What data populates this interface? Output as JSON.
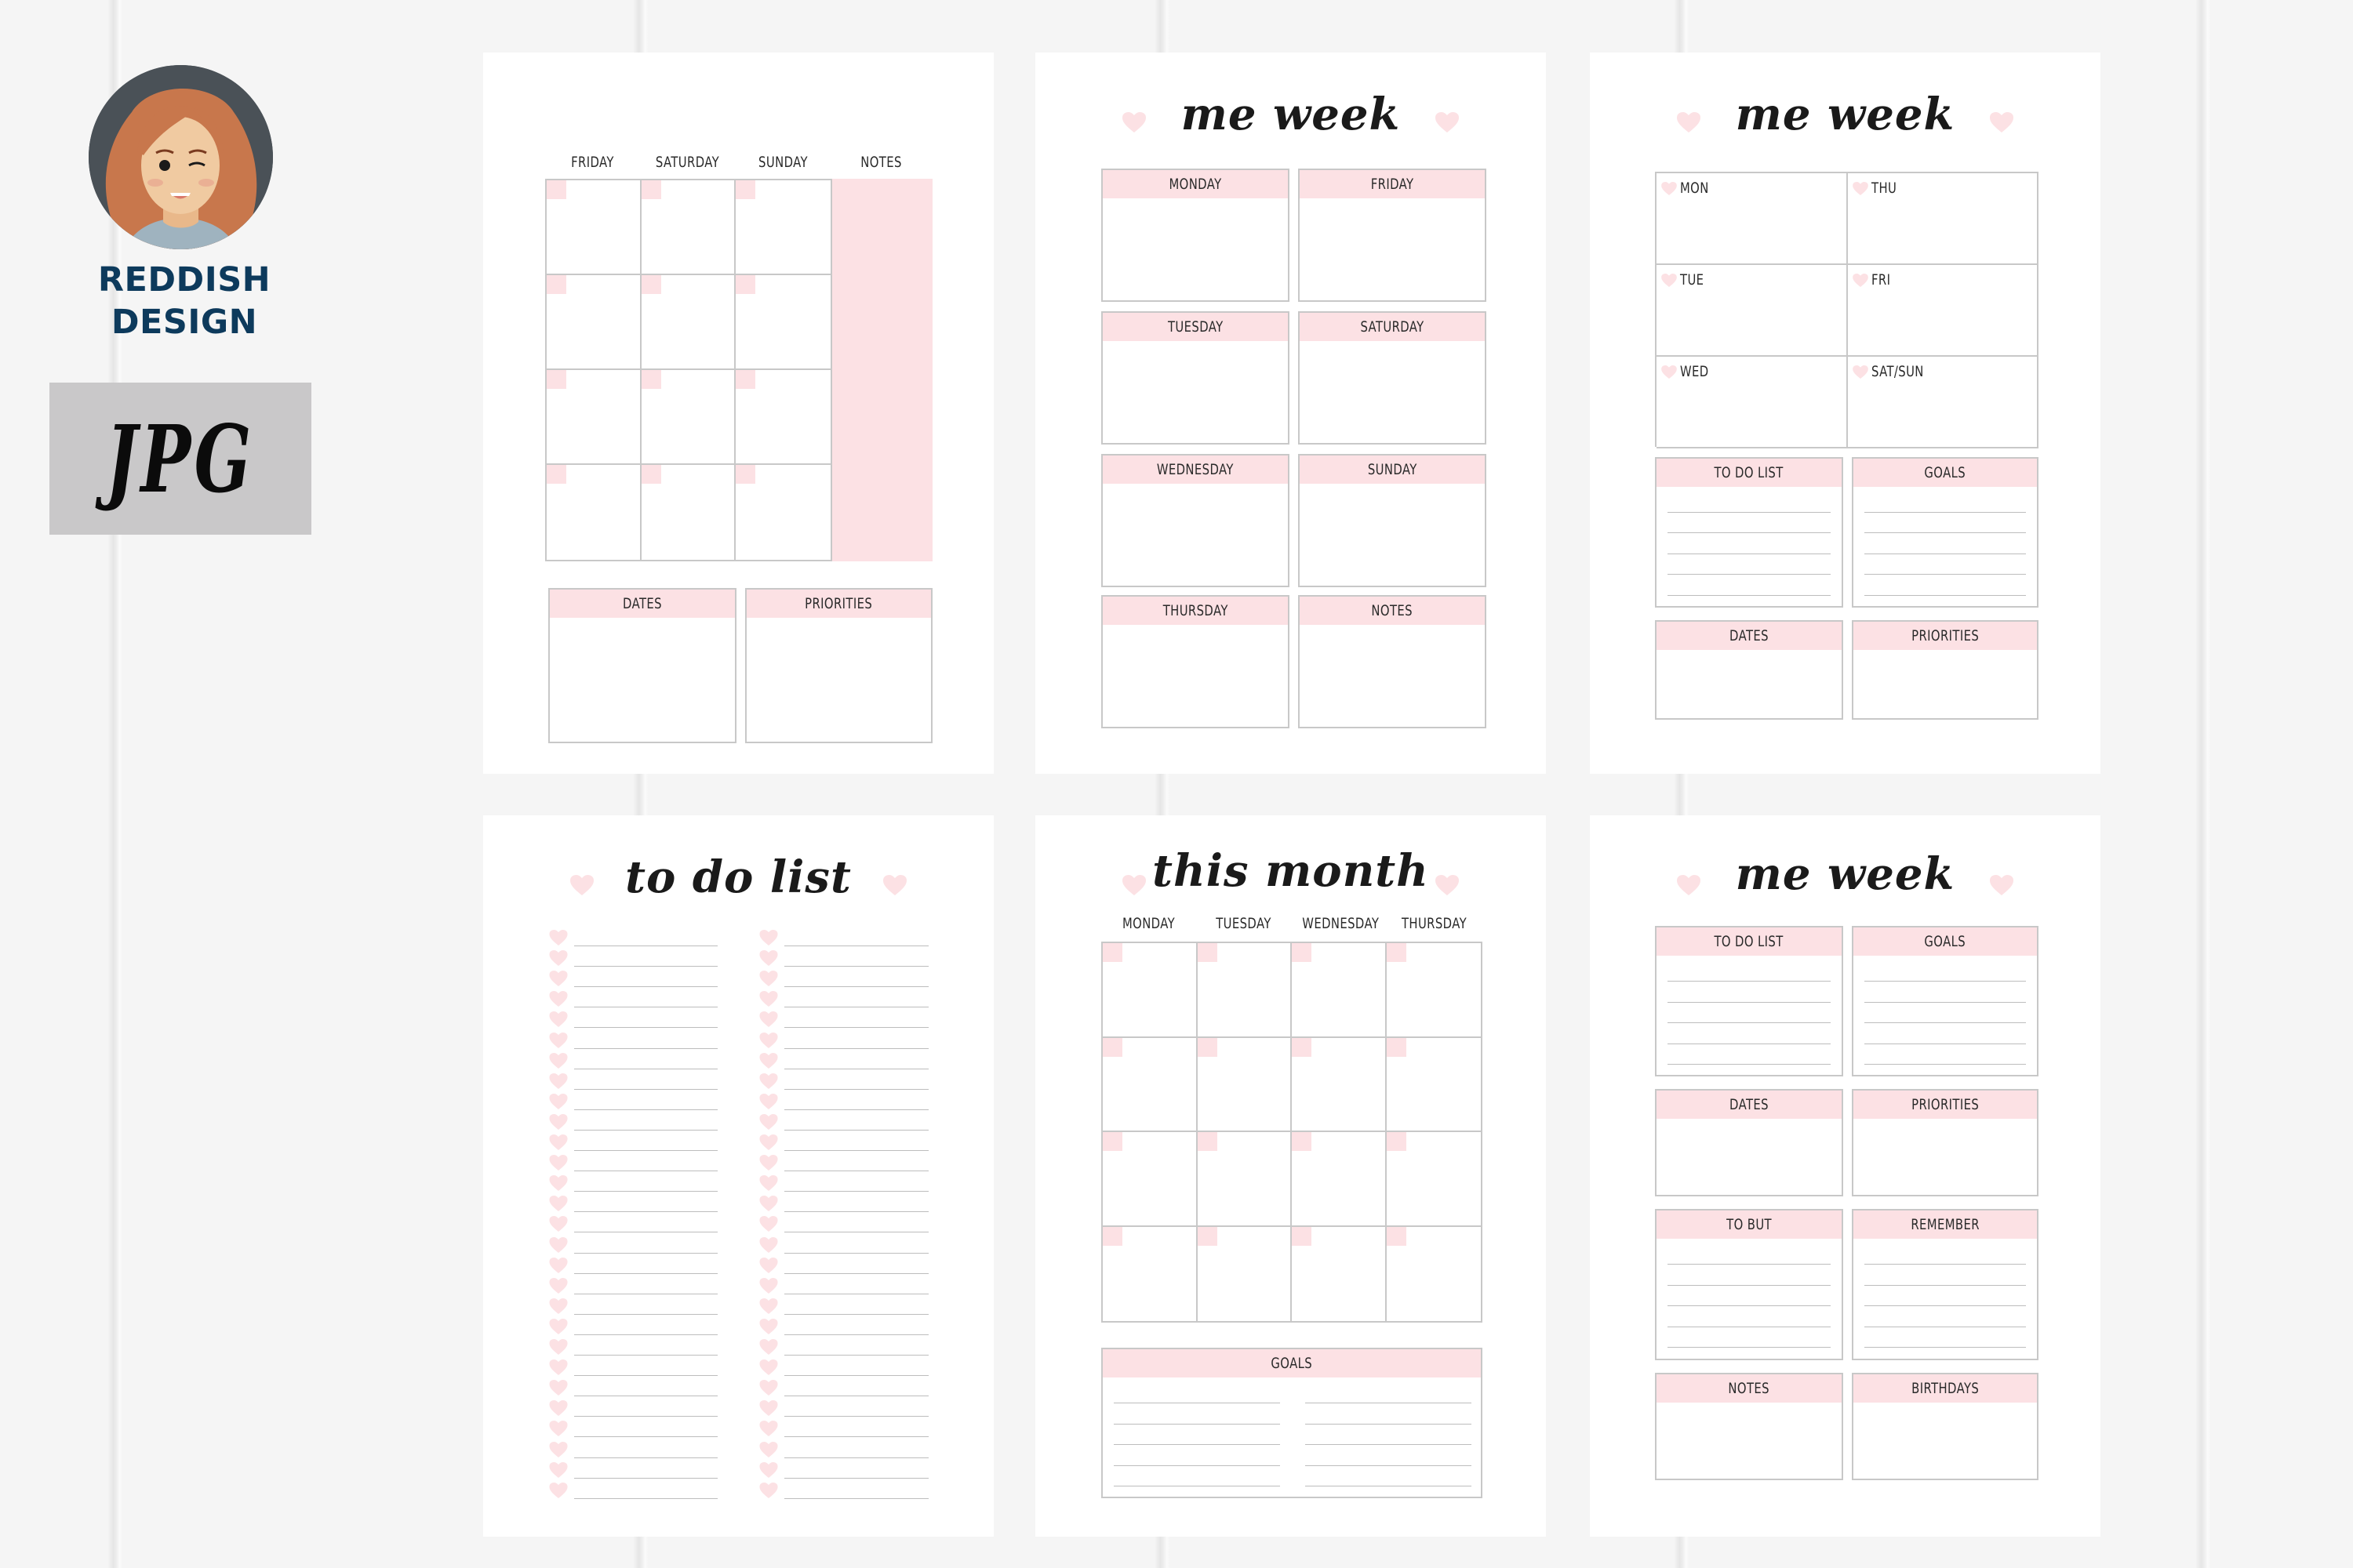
{
  "brand": {
    "name_line1": "REDDISH",
    "name_line2": "DESIGN",
    "format_badge": "JPG",
    "avatar_icon": "winking-girl-avatar-icon"
  },
  "colors": {
    "background": "#f5f5f5",
    "page": "#ffffff",
    "accent_pink": "#fce1e4",
    "border_grey": "#c8c8c8",
    "brand_navy": "#0d3a5c",
    "badge_grey": "#c9c8c9",
    "title_black": "#1a1a1a"
  },
  "pages": {
    "p1": {
      "title": "",
      "columns": [
        "FRIDAY",
        "SATURDAY",
        "SUNDAY",
        "NOTES"
      ],
      "grid_rows": 4,
      "boxes": [
        "DATES",
        "PRIORITIES"
      ]
    },
    "p2": {
      "title": "me week",
      "boxes_left": [
        "MONDAY",
        "TUESDAY",
        "WEDNESDAY",
        "THURSDAY"
      ],
      "boxes_right": [
        "FRIDAY",
        "SATURDAY",
        "SUNDAY",
        "NOTES"
      ]
    },
    "p3": {
      "title": "me week",
      "days_left": [
        "MON",
        "TUE",
        "WED"
      ],
      "days_right": [
        "THU",
        "FRI",
        "SAT/SUN"
      ],
      "boxes": [
        "TO DO LIST",
        "GOALS",
        "DATES",
        "PRIORITIES"
      ]
    },
    "p4": {
      "title": "to do list",
      "rows_per_column": 28,
      "columns": 2
    },
    "p5": {
      "title": "this month",
      "columns": [
        "MONDAY",
        "TUESDAY",
        "WEDNESDAY",
        "THURSDAY"
      ],
      "grid_rows": 4,
      "goals_label": "GOALS"
    },
    "p6": {
      "title": "me week",
      "boxes": [
        "TO DO LIST",
        "GOALS",
        "DATES",
        "PRIORITIES",
        "TO BUT",
        "REMEMBER",
        "NOTES",
        "BIRTHDAYS"
      ]
    }
  }
}
